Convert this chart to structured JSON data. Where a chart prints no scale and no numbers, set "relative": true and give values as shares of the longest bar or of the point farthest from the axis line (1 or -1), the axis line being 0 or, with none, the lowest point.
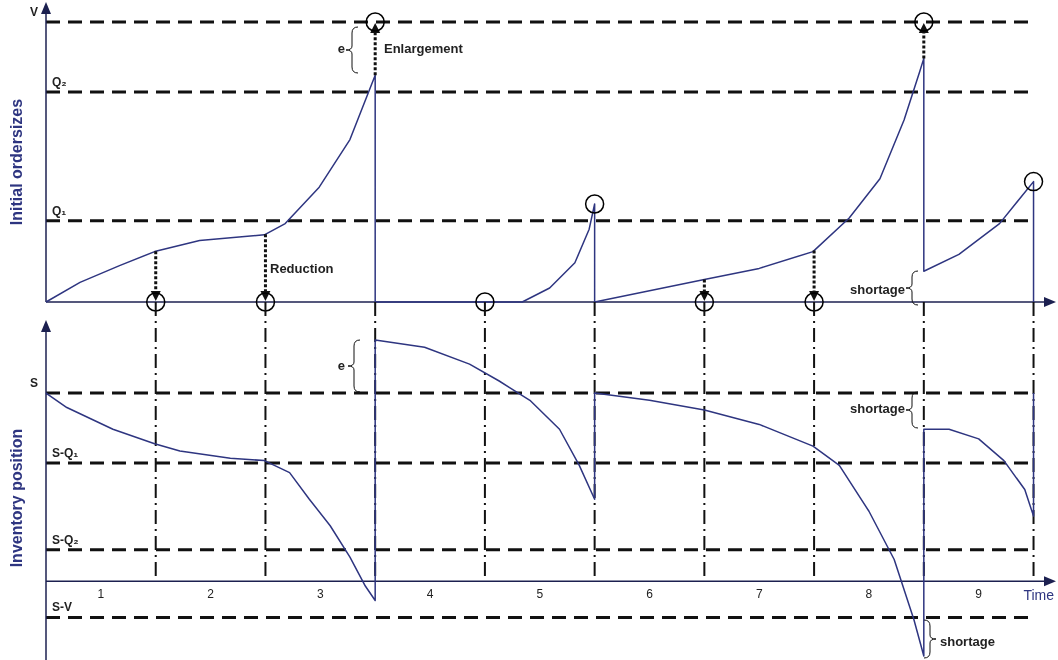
{
  "chart_data": [
    {
      "type": "line",
      "relative": true,
      "ylabel": "Initial ordersizes",
      "xlim": [
        0.5,
        9.65
      ],
      "tick_labels": false,
      "grid": false,
      "series": [
        {
          "color": "#2e3580",
          "line_style": "solid",
          "x": [
            0.5,
            0.81,
            1.17,
            1.49,
            1.9,
            2.49,
            2.68,
            2.99,
            3.27,
            3.5,
            3.5,
            4.84,
            5.09,
            5.32,
            5.45,
            5.5,
            5.5,
            6.0,
            6.5,
            7.0,
            7.49,
            7.82,
            8.1,
            8.32,
            8.46,
            8.5,
            8.5,
            8.82,
            9.19,
            9.5,
            9.5
          ],
          "values": [
            0,
            0.07,
            0.13,
            0.18,
            0.22,
            0.24,
            0.28,
            0.41,
            0.58,
            0.81,
            0,
            0,
            0.05,
            0.14,
            0.26,
            0.35,
            0,
            0.04,
            0.08,
            0.12,
            0.18,
            0.3,
            0.44,
            0.65,
            0.82,
            0.87,
            0.11,
            0.17,
            0.28,
            0.43,
            0
          ]
        },
        {
          "type": "scatter",
          "color": "#000000",
          "marker": "circle",
          "x": [
            1.5,
            2.5,
            3.5,
            4.5,
            5.5,
            6.5,
            7.5,
            8.5,
            9.5
          ],
          "values": [
            0,
            0,
            1,
            0,
            0.35,
            0,
            0,
            1,
            0.43
          ]
        }
      ],
      "ref_lines": [
        {
          "axis": "y",
          "value": 1,
          "label": "V",
          "line_style": "dashed"
        },
        {
          "axis": "y",
          "value": 0.75,
          "label": "Q₂",
          "line_style": "dashed"
        },
        {
          "axis": "y",
          "value": 0.29,
          "label": "Q₁",
          "line_style": "dashed"
        }
      ],
      "annotations": [
        "e",
        "Enlargement",
        "Reduction",
        "shortage"
      ]
    },
    {
      "type": "line",
      "relative": true,
      "ylabel": "Inventory position",
      "xlabel": "Time",
      "xlim": [
        0.5,
        9.65
      ],
      "xticks": [
        1,
        2,
        3,
        4,
        5,
        6,
        7,
        8,
        9
      ],
      "tick_labels": "x",
      "grid": false,
      "series": [
        {
          "color": "#2e3580",
          "line_style": "solid",
          "x": [
            0.5,
            0.69,
            1.11,
            1.49,
            1.72,
            2.18,
            2.49,
            2.72,
            2.9,
            3.09,
            3.27,
            3.41,
            3.5,
            3.5,
            3.95,
            4.36,
            4.63,
            4.91,
            5.18,
            5.36,
            5.5,
            5.5,
            6.0,
            6.5,
            7.0,
            7.49,
            7.73,
            8.0,
            8.23,
            8.41,
            8.5,
            8.5,
            8.73,
            9.0,
            9.23,
            9.42,
            9.5,
            9.5
          ],
          "values": [
            0.78,
            0.72,
            0.63,
            0.57,
            0.54,
            0.51,
            0.5,
            0.45,
            0.34,
            0.23,
            0.1,
            -0.02,
            -0.08,
            1,
            0.97,
            0.9,
            0.83,
            0.75,
            0.63,
            0.48,
            0.34,
            0.78,
            0.75,
            0.71,
            0.65,
            0.56,
            0.48,
            0.29,
            0.09,
            -0.16,
            -0.31,
            0.63,
            0.63,
            0.59,
            0.5,
            0.38,
            0.27,
            0.78
          ]
        }
      ],
      "ref_lines": [
        {
          "axis": "y",
          "value": 0.78,
          "label": "S",
          "line_style": "dashed"
        },
        {
          "axis": "y",
          "value": 0.49,
          "label": "S-Q₁",
          "line_style": "dashed"
        },
        {
          "axis": "y",
          "value": 0.13,
          "label": "S-Q₂",
          "line_style": "dashed"
        },
        {
          "axis": "y",
          "value": -0.15,
          "label": "S-V",
          "line_style": "dashed"
        },
        {
          "axis": "x",
          "value": 1.5,
          "line_style": "dashed"
        },
        {
          "axis": "x",
          "value": 2.5,
          "line_style": "dashed"
        },
        {
          "axis": "x",
          "value": 3.5,
          "line_style": "dashed"
        },
        {
          "axis": "x",
          "value": 4.5,
          "line_style": "dashed"
        },
        {
          "axis": "x",
          "value": 5.5,
          "line_style": "dashed"
        },
        {
          "axis": "x",
          "value": 6.5,
          "line_style": "dashed"
        },
        {
          "axis": "x",
          "value": 7.5,
          "line_style": "dashed"
        },
        {
          "axis": "x",
          "value": 8.5,
          "line_style": "dashed"
        },
        {
          "axis": "x",
          "value": 9.5,
          "line_style": "dashed"
        }
      ],
      "annotations": [
        "e",
        "shortage",
        "shortage"
      ]
    }
  ]
}
